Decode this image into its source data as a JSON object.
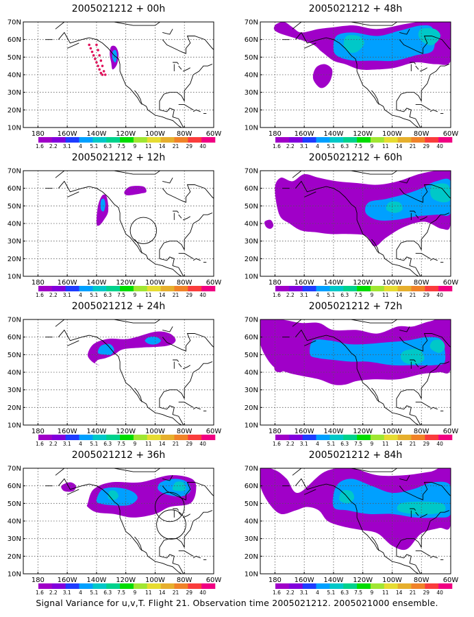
{
  "caption": "Signal Variance for u,v,T. Flight 21. Observation time 2005021212. 2005021000 ensemble.",
  "colorbar": {
    "labels": [
      "1.6",
      "2.2",
      "3.1",
      "4",
      "5.1",
      "6.3",
      "7.5",
      "9",
      "11",
      "14",
      "21",
      "29",
      "40"
    ],
    "colors": [
      "#a000c8",
      "#8200dc",
      "#1e3cff",
      "#00a0ff",
      "#00c8c8",
      "#00d28c",
      "#00dc00",
      "#a0e632",
      "#e6dc32",
      "#e6af2d",
      "#f08228",
      "#fa3c3c",
      "#f00082"
    ]
  },
  "axes": {
    "y_ticks": [
      "70N",
      "60N",
      "50N",
      "40N",
      "30N",
      "20N",
      "10N"
    ],
    "x_ticks": [
      "180",
      "160W",
      "140W",
      "120W",
      "100W",
      "80W",
      "60W"
    ]
  },
  "chart_data": [
    {
      "type": "heatmap",
      "title": "2005021212 + 00h",
      "forecast_hour": 0,
      "xlim": [
        -190,
        -60
      ],
      "ylim": [
        10,
        70
      ],
      "dropsondes": [
        [
          -145,
          57
        ],
        [
          -144,
          55
        ],
        [
          -143,
          53
        ],
        [
          -142,
          51
        ],
        [
          -141,
          49
        ],
        [
          -140,
          47
        ],
        [
          -139,
          45
        ],
        [
          -138,
          43
        ],
        [
          -137,
          41
        ],
        [
          -140,
          57
        ],
        [
          -139,
          54
        ],
        [
          -138,
          51
        ],
        [
          -137,
          48
        ],
        [
          -136,
          45
        ],
        [
          -135,
          42
        ],
        [
          -134,
          40
        ],
        [
          -136,
          40
        ]
      ],
      "variance_regions": [
        {
          "level": 1.6,
          "lon": [
            -130,
            -131,
            -130,
            -127,
            -125,
            -126,
            -129
          ],
          "lat": [
            47,
            52,
            56,
            56,
            52,
            46,
            43
          ]
        },
        {
          "level": 4,
          "lon": [
            -129,
            -129,
            -127,
            -126,
            -127
          ],
          "lat": [
            49,
            53,
            54,
            51,
            47
          ]
        }
      ],
      "circles": []
    },
    {
      "type": "heatmap",
      "title": "2005021212 + 12h",
      "forecast_hour": 12,
      "xlim": [
        -190,
        -60
      ],
      "ylim": [
        10,
        70
      ],
      "dropsondes": [],
      "variance_regions": [
        {
          "level": 1.6,
          "lon": [
            -140,
            -139,
            -136,
            -133,
            -132,
            -135,
            -138
          ],
          "lat": [
            40,
            50,
            56,
            55,
            47,
            42,
            39
          ]
        },
        {
          "level": 4,
          "lon": [
            -137,
            -137,
            -135,
            -134,
            -135
          ],
          "lat": [
            48,
            53,
            54,
            51,
            47
          ]
        },
        {
          "level": 1.6,
          "lon": [
            -121,
            -117,
            -108,
            -106,
            -110,
            -119
          ],
          "lat": [
            58,
            61,
            61,
            58,
            57,
            56
          ]
        }
      ],
      "circles": [
        {
          "lon": -108,
          "lat": 36,
          "r_deg": 9
        }
      ]
    },
    {
      "type": "heatmap",
      "title": "2005021212 + 24h",
      "forecast_hour": 24,
      "xlim": [
        -190,
        -60
      ],
      "ylim": [
        10,
        70
      ],
      "dropsondes": [],
      "variance_regions": [
        {
          "level": 1.6,
          "lon": [
            -143,
            -146,
            -142,
            -132,
            -118,
            -100,
            -90,
            -86,
            -92,
            -110,
            -122,
            -128,
            -134,
            -139,
            -141,
            -138
          ],
          "lat": [
            46,
            50,
            56,
            59,
            59,
            63,
            62,
            58,
            55,
            54,
            53,
            50,
            48,
            47,
            45,
            44
          ]
        },
        {
          "level": 4,
          "lon": [
            -139,
            -137,
            -131,
            -128,
            -130,
            -134
          ],
          "lat": [
            51,
            55,
            56,
            53,
            50,
            50
          ]
        },
        {
          "level": 4,
          "lon": [
            -107,
            -104,
            -99,
            -96,
            -99,
            -104
          ],
          "lat": [
            58,
            60,
            60,
            58,
            56,
            56
          ]
        }
      ],
      "circles": []
    },
    {
      "type": "heatmap",
      "title": "2005021212 + 36h",
      "forecast_hour": 36,
      "xlim": [
        -190,
        -60
      ],
      "ylim": [
        10,
        70
      ],
      "dropsondes": [],
      "variance_regions": [
        {
          "level": 1.6,
          "lon": [
            -162,
            -164,
            -158,
            -154,
            -156
          ],
          "lat": [
            57,
            60,
            62,
            60,
            57
          ]
        },
        {
          "level": 1.6,
          "lon": [
            -146,
            -142,
            -130,
            -110,
            -90,
            -75,
            -72,
            -76,
            -90,
            -100,
            -115,
            -128,
            -140,
            -146
          ],
          "lat": [
            50,
            58,
            62,
            62,
            66,
            64,
            58,
            50,
            48,
            44,
            42,
            44,
            45,
            48
          ]
        },
        {
          "level": 4,
          "lon": [
            -140,
            -136,
            -126,
            -116,
            -112,
            -118,
            -130,
            -138
          ],
          "lat": [
            52,
            58,
            59,
            57,
            53,
            49,
            49,
            50
          ]
        },
        {
          "level": 5.1,
          "lon": [
            -132,
            -131,
            -127,
            -125,
            -128
          ],
          "lat": [
            53,
            57,
            57,
            54,
            52
          ]
        },
        {
          "level": 4,
          "lon": [
            -98,
            -96,
            -86,
            -78,
            -76,
            -82,
            -92
          ],
          "lat": [
            58,
            62,
            64,
            62,
            57,
            54,
            55
          ]
        },
        {
          "level": 5.1,
          "lon": [
            -88,
            -86,
            -81,
            -79,
            -83
          ],
          "lat": [
            58,
            62,
            62,
            58,
            57
          ]
        }
      ],
      "circles": [
        {
          "lon": -90,
          "lat": 48,
          "r_deg": 10
        },
        {
          "lon": -89,
          "lat": 38,
          "r_deg": 10
        }
      ]
    },
    {
      "type": "heatmap",
      "title": "2005021212 + 48h",
      "forecast_hour": 48,
      "xlim": [
        -190,
        -60
      ],
      "ylim": [
        10,
        70
      ],
      "dropsondes": [],
      "variance_regions": [
        {
          "level": 1.6,
          "lon": [
            -178,
            -180,
            -174,
            -168,
            -162,
            -150,
            -140,
            -126,
            -110,
            -90,
            -72,
            -60,
            -60,
            -70,
            -84,
            -98,
            -110,
            -122,
            -132,
            -140,
            -148,
            -156
          ],
          "lat": [
            64,
            68,
            70,
            67,
            64,
            66,
            67,
            68,
            66,
            69,
            71,
            70,
            48,
            46,
            47,
            44,
            43,
            43,
            46,
            48,
            53,
            58
          ]
        },
        {
          "level": 1.6,
          "lon": [
            -150,
            -154,
            -152,
            -146,
            -141,
            -142,
            -146
          ],
          "lat": [
            33,
            38,
            44,
            46,
            43,
            37,
            33
          ]
        },
        {
          "level": 4,
          "lon": [
            -140,
            -138,
            -127,
            -110,
            -95,
            -80,
            -72,
            -72,
            -84,
            -98,
            -112,
            -126,
            -136
          ],
          "lat": [
            54,
            62,
            64,
            62,
            65,
            68,
            66,
            54,
            51,
            48,
            48,
            48,
            50
          ]
        },
        {
          "level": 5.1,
          "lon": [
            -133,
            -131,
            -123,
            -119,
            -124,
            -130
          ],
          "lat": [
            57,
            62,
            62,
            58,
            53,
            53
          ]
        },
        {
          "level": 5.1,
          "lon": [
            -82,
            -80,
            -71,
            -67,
            -72,
            -78
          ],
          "lat": [
            62,
            66,
            66,
            62,
            57,
            58
          ]
        }
      ],
      "circles": []
    },
    {
      "type": "heatmap",
      "title": "2005021212 + 60h",
      "forecast_hour": 60,
      "xlim": [
        -190,
        -60
      ],
      "ylim": [
        10,
        70
      ],
      "dropsondes": [],
      "variance_regions": [
        {
          "level": 1.6,
          "lon": [
            -180,
            -176,
            -168,
            -160,
            -150,
            -138,
            -124,
            -110,
            -96,
            -82,
            -70,
            -60,
            -60,
            -66,
            -78,
            -92,
            -104,
            -112,
            -118,
            -130,
            -142,
            -152,
            -162,
            -170,
            -177
          ],
          "lat": [
            60,
            66,
            64,
            68,
            66,
            64,
            63,
            62,
            64,
            68,
            70,
            70,
            40,
            37,
            41,
            38,
            32,
            27,
            33,
            34,
            34,
            35,
            36,
            40,
            45
          ]
        },
        {
          "level": 1.6,
          "lon": [
            -186,
            -187,
            -183,
            -181,
            -183
          ],
          "lat": [
            38,
            41,
            42,
            39,
            37
          ]
        },
        {
          "level": 4,
          "lon": [
            -118,
            -116,
            -104,
            -90,
            -80,
            -70,
            -60,
            -60,
            -70,
            -84,
            -98,
            -110
          ],
          "lat": [
            46,
            52,
            54,
            57,
            60,
            64,
            64,
            46,
            45,
            44,
            42,
            42
          ]
        },
        {
          "level": 5.1,
          "lon": [
            -104,
            -102,
            -95,
            -93,
            -98
          ],
          "lat": [
            48,
            52,
            52,
            48,
            46
          ]
        },
        {
          "level": 5.1,
          "lon": [
            -74,
            -72,
            -62,
            -60,
            -65,
            -72
          ],
          "lat": [
            58,
            62,
            62,
            54,
            52,
            54
          ]
        }
      ],
      "circles": []
    },
    {
      "type": "heatmap",
      "title": "2005021212 + 72h",
      "forecast_hour": 72,
      "xlim": [
        -190,
        -60
      ],
      "ylim": [
        10,
        70
      ],
      "dropsondes": [],
      "variance_regions": [
        {
          "level": 1.6,
          "lon": [
            -190,
            -190,
            -176,
            -162,
            -150,
            -140,
            -124,
            -110,
            -96,
            -86,
            -74,
            -60,
            -60,
            -68,
            -80,
            -96,
            -112,
            -124,
            -132,
            -140,
            -150,
            -162,
            -172,
            -182
          ],
          "lat": [
            56,
            70,
            70,
            68,
            68,
            64,
            64,
            62,
            66,
            66,
            69,
            70,
            42,
            40,
            39,
            36,
            36,
            35,
            33,
            33,
            36,
            38,
            40,
            44
          ]
        },
        {
          "level": 1.6,
          "lon": [
            -180,
            -180,
            -176,
            -174,
            -176
          ],
          "lat": [
            41,
            45,
            46,
            42,
            40
          ]
        },
        {
          "level": 4,
          "lon": [
            -156,
            -154,
            -142,
            -130,
            -118,
            -104,
            -90,
            -76,
            -66,
            -64,
            -72,
            -86,
            -100,
            -116,
            -128,
            -140,
            -150
          ],
          "lat": [
            50,
            58,
            58,
            56,
            56,
            57,
            58,
            60,
            58,
            46,
            44,
            44,
            44,
            46,
            46,
            47,
            48
          ]
        },
        {
          "level": 5.1,
          "lon": [
            -94,
            -92,
            -82,
            -78,
            -82,
            -90
          ],
          "lat": [
            48,
            52,
            53,
            48,
            45,
            45
          ]
        },
        {
          "level": 5.1,
          "lon": [
            -74,
            -72,
            -66,
            -64,
            -68
          ],
          "lat": [
            54,
            58,
            58,
            54,
            51
          ]
        }
      ],
      "circles": []
    },
    {
      "type": "heatmap",
      "title": "2005021212 + 84h",
      "forecast_hour": 84,
      "xlim": [
        -190,
        -60
      ],
      "ylim": [
        10,
        70
      ],
      "dropsondes": [],
      "variance_regions": [
        {
          "level": 1.6,
          "lon": [
            -190,
            -190,
            -180,
            -172,
            -164,
            -146,
            -128,
            -110,
            -92,
            -74,
            -60,
            -60,
            -68,
            -80,
            -90,
            -100,
            -110,
            -122,
            -134,
            -144,
            -150,
            -158,
            -166,
            -176,
            -184
          ],
          "lat": [
            60,
            70,
            69,
            64,
            56,
            68,
            70,
            66,
            66,
            68,
            70,
            38,
            36,
            33,
            24,
            26,
            33,
            35,
            37,
            40,
            46,
            48,
            46,
            44,
            50
          ]
        },
        {
          "level": 4,
          "lon": [
            -140,
            -138,
            -128,
            -114,
            -100,
            -86,
            -72,
            -60,
            -60,
            -70,
            -84,
            -100,
            -116,
            -130
          ],
          "lat": [
            48,
            60,
            64,
            60,
            56,
            58,
            62,
            60,
            44,
            42,
            42,
            44,
            44,
            46
          ]
        },
        {
          "level": 5.1,
          "lon": [
            -136,
            -134,
            -128,
            -126,
            -130
          ],
          "lat": [
            52,
            57,
            57,
            53,
            50
          ]
        },
        {
          "level": 5.1,
          "lon": [
            -96,
            -94,
            -80,
            -66,
            -64,
            -72,
            -86
          ],
          "lat": [
            46,
            50,
            51,
            50,
            46,
            44,
            44
          ]
        }
      ],
      "circles": []
    }
  ]
}
